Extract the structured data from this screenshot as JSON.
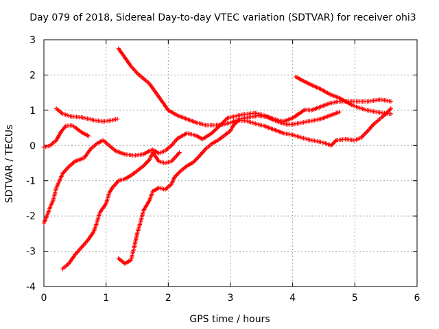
{
  "chart_data": {
    "type": "scatter",
    "title": "Day 079 of 2018, Sidereal Day-to-day VTEC variation (SDTVAR) for receiver ohi3",
    "xlabel": "GPS time / hours",
    "ylabel": "SDTVAR / TECUs",
    "xlim": [
      0,
      6
    ],
    "ylim": [
      -4,
      3
    ],
    "xticks": [
      "0",
      "1",
      "2",
      "3",
      "4",
      "5",
      "6"
    ],
    "yticks": [
      "-4",
      "-3",
      "-2",
      "-1",
      "0",
      "1",
      "2",
      "3"
    ],
    "grid": true,
    "marker": "plus",
    "color": "#ff0000",
    "series": [
      {
        "points": [
          [
            0.0,
            -0.05
          ],
          [
            0.1,
            0.0
          ],
          [
            0.2,
            0.15
          ],
          [
            0.28,
            0.4
          ],
          [
            0.35,
            0.55
          ],
          [
            0.45,
            0.57
          ],
          [
            0.5,
            0.52
          ],
          [
            0.6,
            0.38
          ],
          [
            0.72,
            0.27
          ]
        ]
      },
      {
        "points": [
          [
            0.2,
            1.05
          ],
          [
            0.3,
            0.9
          ],
          [
            0.45,
            0.82
          ],
          [
            0.6,
            0.8
          ],
          [
            0.8,
            0.72
          ],
          [
            0.95,
            0.68
          ],
          [
            1.1,
            0.72
          ],
          [
            1.18,
            0.75
          ]
        ]
      },
      {
        "points": [
          [
            0.0,
            -2.2
          ],
          [
            0.05,
            -2.0
          ],
          [
            0.1,
            -1.75
          ],
          [
            0.15,
            -1.55
          ],
          [
            0.2,
            -1.2
          ],
          [
            0.3,
            -0.8
          ],
          [
            0.4,
            -0.6
          ],
          [
            0.5,
            -0.45
          ],
          [
            0.65,
            -0.35
          ],
          [
            0.75,
            -0.1
          ],
          [
            0.85,
            0.05
          ],
          [
            0.95,
            0.15
          ],
          [
            1.05,
            0.0
          ],
          [
            1.15,
            -0.15
          ],
          [
            1.3,
            -0.25
          ],
          [
            1.45,
            -0.28
          ],
          [
            1.6,
            -0.25
          ],
          [
            1.7,
            -0.15
          ],
          [
            1.75,
            -0.12
          ],
          [
            1.85,
            -0.22
          ],
          [
            1.95,
            -0.15
          ],
          [
            2.05,
            0.0
          ],
          [
            2.15,
            0.2
          ],
          [
            2.3,
            0.35
          ],
          [
            2.45,
            0.28
          ],
          [
            2.55,
            0.18
          ],
          [
            2.7,
            0.35
          ],
          [
            2.85,
            0.6
          ],
          [
            2.95,
            0.78
          ],
          [
            3.05,
            0.82
          ],
          [
            3.2,
            0.88
          ],
          [
            3.3,
            0.9
          ],
          [
            3.4,
            0.92
          ],
          [
            3.55,
            0.85
          ],
          [
            3.7,
            0.75
          ],
          [
            3.85,
            0.68
          ],
          [
            4.0,
            0.78
          ],
          [
            4.1,
            0.9
          ],
          [
            4.2,
            1.02
          ],
          [
            4.3,
            1.0
          ],
          [
            4.45,
            1.1
          ],
          [
            4.6,
            1.2
          ],
          [
            4.75,
            1.25
          ],
          [
            4.85,
            1.25
          ],
          [
            5.0,
            1.25
          ],
          [
            5.2,
            1.25
          ],
          [
            5.4,
            1.3
          ],
          [
            5.5,
            1.28
          ],
          [
            5.58,
            1.25
          ]
        ]
      },
      {
        "points": [
          [
            1.2,
            2.75
          ],
          [
            1.3,
            2.5
          ],
          [
            1.4,
            2.25
          ],
          [
            1.5,
            2.05
          ],
          [
            1.6,
            1.9
          ],
          [
            1.7,
            1.75
          ],
          [
            1.8,
            1.5
          ],
          [
            1.9,
            1.25
          ],
          [
            2.0,
            1.0
          ],
          [
            2.15,
            0.85
          ],
          [
            2.3,
            0.75
          ],
          [
            2.45,
            0.65
          ],
          [
            2.6,
            0.58
          ],
          [
            2.75,
            0.58
          ],
          [
            2.9,
            0.6
          ],
          [
            3.0,
            0.65
          ],
          [
            3.1,
            0.72
          ],
          [
            3.25,
            0.7
          ],
          [
            3.4,
            0.62
          ],
          [
            3.55,
            0.55
          ],
          [
            3.7,
            0.45
          ],
          [
            3.85,
            0.35
          ],
          [
            4.0,
            0.3
          ],
          [
            4.15,
            0.22
          ],
          [
            4.3,
            0.15
          ],
          [
            4.45,
            0.1
          ],
          [
            4.55,
            0.05
          ],
          [
            4.62,
            0.0
          ],
          [
            4.7,
            0.15
          ],
          [
            4.85,
            0.18
          ],
          [
            5.0,
            0.15
          ],
          [
            5.1,
            0.22
          ],
          [
            5.2,
            0.4
          ],
          [
            5.3,
            0.6
          ],
          [
            5.4,
            0.75
          ],
          [
            5.5,
            0.9
          ],
          [
            5.58,
            1.05
          ]
        ]
      },
      {
        "points": [
          [
            0.3,
            -3.5
          ],
          [
            0.4,
            -3.35
          ],
          [
            0.5,
            -3.1
          ],
          [
            0.6,
            -2.9
          ],
          [
            0.7,
            -2.7
          ],
          [
            0.8,
            -2.45
          ],
          [
            0.85,
            -2.2
          ],
          [
            0.9,
            -1.9
          ],
          [
            1.0,
            -1.65
          ],
          [
            1.05,
            -1.35
          ],
          [
            1.1,
            -1.2
          ],
          [
            1.2,
            -1.0
          ],
          [
            1.3,
            -0.95
          ],
          [
            1.4,
            -0.85
          ],
          [
            1.5,
            -0.72
          ],
          [
            1.6,
            -0.58
          ],
          [
            1.7,
            -0.4
          ],
          [
            1.75,
            -0.2
          ],
          [
            1.85,
            -0.45
          ],
          [
            1.95,
            -0.5
          ],
          [
            2.05,
            -0.45
          ],
          [
            2.12,
            -0.32
          ],
          [
            2.18,
            -0.2
          ]
        ]
      },
      {
        "points": [
          [
            1.2,
            -3.2
          ],
          [
            1.3,
            -3.35
          ],
          [
            1.4,
            -3.25
          ],
          [
            1.45,
            -2.9
          ],
          [
            1.5,
            -2.5
          ],
          [
            1.55,
            -2.2
          ],
          [
            1.6,
            -1.85
          ],
          [
            1.7,
            -1.55
          ],
          [
            1.75,
            -1.3
          ],
          [
            1.85,
            -1.2
          ],
          [
            1.95,
            -1.25
          ],
          [
            2.05,
            -1.1
          ],
          [
            2.1,
            -0.9
          ],
          [
            2.2,
            -0.72
          ],
          [
            2.3,
            -0.58
          ],
          [
            2.4,
            -0.48
          ],
          [
            2.5,
            -0.3
          ],
          [
            2.6,
            -0.1
          ],
          [
            2.7,
            0.05
          ],
          [
            2.8,
            0.15
          ],
          [
            2.9,
            0.28
          ],
          [
            3.0,
            0.42
          ],
          [
            3.05,
            0.58
          ],
          [
            3.15,
            0.75
          ],
          [
            3.3,
            0.8
          ],
          [
            3.45,
            0.85
          ],
          [
            3.6,
            0.8
          ],
          [
            3.7,
            0.72
          ],
          [
            3.8,
            0.65
          ],
          [
            3.9,
            0.6
          ],
          [
            4.0,
            0.6
          ],
          [
            4.15,
            0.65
          ],
          [
            4.3,
            0.7
          ],
          [
            4.45,
            0.75
          ],
          [
            4.6,
            0.85
          ],
          [
            4.75,
            0.95
          ]
        ]
      },
      {
        "points": [
          [
            4.05,
            1.95
          ],
          [
            4.15,
            1.85
          ],
          [
            4.3,
            1.72
          ],
          [
            4.45,
            1.6
          ],
          [
            4.6,
            1.45
          ],
          [
            4.75,
            1.35
          ],
          [
            4.85,
            1.25
          ],
          [
            4.95,
            1.15
          ],
          [
            5.05,
            1.08
          ],
          [
            5.2,
            1.0
          ],
          [
            5.35,
            0.95
          ],
          [
            5.45,
            0.92
          ],
          [
            5.58,
            0.9
          ]
        ]
      }
    ]
  }
}
